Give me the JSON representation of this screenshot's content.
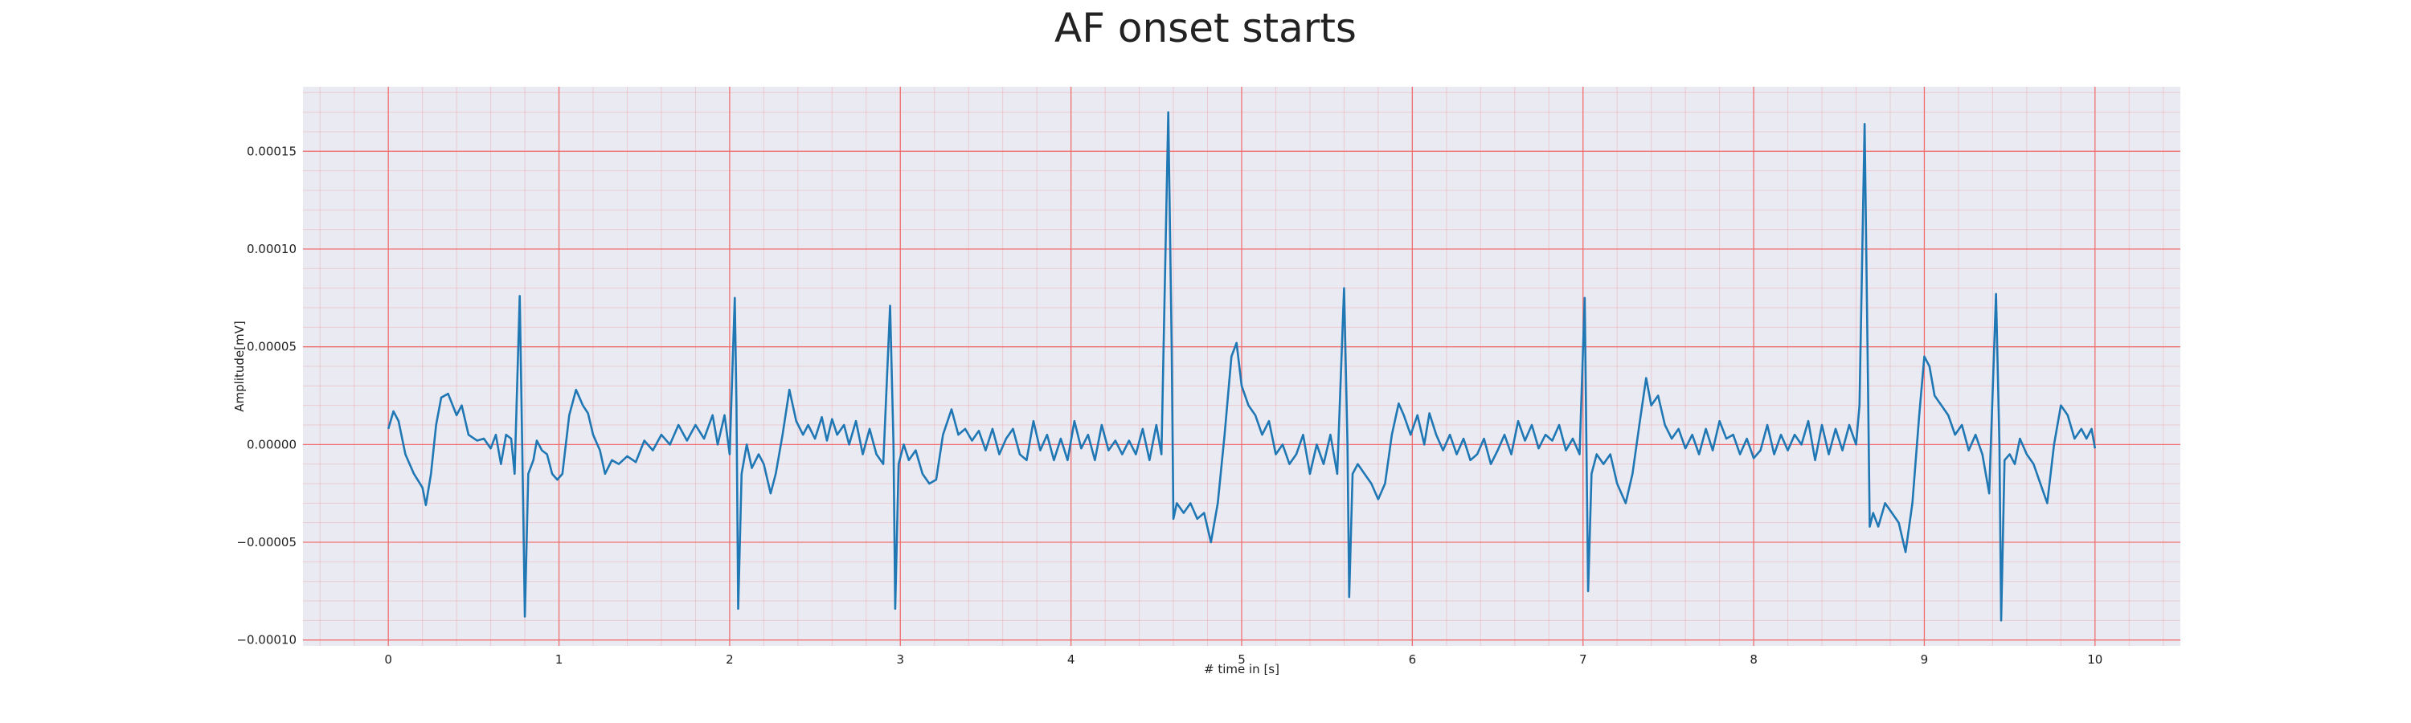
{
  "chart_data": {
    "type": "line",
    "title": "AF onset starts",
    "xlabel": "# time in [s]",
    "ylabel": "Amplitude[mV]",
    "xlim": [
      -0.5,
      10.5
    ],
    "ylim": [
      -0.000103,
      0.000183
    ],
    "xticks": [
      0,
      1,
      2,
      3,
      4,
      5,
      6,
      7,
      8,
      9,
      10
    ],
    "yticks": [
      {
        "value": -0.0001,
        "label": "−0.00010"
      },
      {
        "value": -5e-05,
        "label": "−0.00005"
      },
      {
        "value": 0,
        "label": "0.00000"
      },
      {
        "value": 5e-05,
        "label": "0.00005"
      },
      {
        "value": 0.0001,
        "label": "0.00010"
      },
      {
        "value": 0.00015,
        "label": "0.00015"
      }
    ],
    "grid": true,
    "grid_color": "#f07070",
    "background": "#eaeaf2",
    "series": [
      {
        "color": "#1f77b4",
        "x": [
          0,
          0.03,
          0.06,
          0.1,
          0.15,
          0.2,
          0.22,
          0.25,
          0.28,
          0.31,
          0.35,
          0.4,
          0.43,
          0.47,
          0.52,
          0.56,
          0.6,
          0.63,
          0.66,
          0.69,
          0.72,
          0.74,
          0.77,
          0.79,
          0.8,
          0.82,
          0.85,
          0.87,
          0.9,
          0.93,
          0.96,
          0.99,
          1.02,
          1.06,
          1.1,
          1.14,
          1.17,
          1.2,
          1.24,
          1.27,
          1.31,
          1.35,
          1.4,
          1.45,
          1.5,
          1.55,
          1.6,
          1.65,
          1.7,
          1.75,
          1.8,
          1.85,
          1.9,
          1.93,
          1.97,
          2.0,
          2.03,
          2.04,
          2.05,
          2.07,
          2.1,
          2.13,
          2.17,
          2.2,
          2.24,
          2.27,
          2.31,
          2.35,
          2.39,
          2.43,
          2.46,
          2.5,
          2.54,
          2.57,
          2.6,
          2.63,
          2.67,
          2.7,
          2.74,
          2.78,
          2.82,
          2.86,
          2.9,
          2.94,
          2.96,
          2.97,
          2.99,
          3.02,
          3.05,
          3.09,
          3.13,
          3.17,
          3.21,
          3.25,
          3.3,
          3.34,
          3.38,
          3.42,
          3.46,
          3.5,
          3.54,
          3.58,
          3.62,
          3.66,
          3.7,
          3.74,
          3.78,
          3.82,
          3.86,
          3.9,
          3.94,
          3.98,
          4.02,
          4.06,
          4.1,
          4.14,
          4.18,
          4.22,
          4.26,
          4.3,
          4.34,
          4.38,
          4.42,
          4.46,
          4.5,
          4.53,
          4.57,
          4.59,
          4.6,
          4.62,
          4.66,
          4.7,
          4.74,
          4.78,
          4.82,
          4.86,
          4.9,
          4.94,
          4.97,
          5.0,
          5.04,
          5.08,
          5.12,
          5.16,
          5.2,
          5.24,
          5.28,
          5.32,
          5.36,
          5.4,
          5.44,
          5.48,
          5.52,
          5.56,
          5.6,
          5.62,
          5.63,
          5.65,
          5.68,
          5.72,
          5.76,
          5.8,
          5.84,
          5.88,
          5.92,
          5.95,
          5.99,
          6.03,
          6.07,
          6.1,
          6.14,
          6.18,
          6.22,
          6.26,
          6.3,
          6.34,
          6.38,
          6.42,
          6.46,
          6.5,
          6.54,
          6.58,
          6.62,
          6.66,
          6.7,
          6.74,
          6.78,
          6.82,
          6.86,
          6.9,
          6.94,
          6.98,
          7.01,
          7.02,
          7.03,
          7.05,
          7.08,
          7.12,
          7.16,
          7.2,
          7.25,
          7.29,
          7.33,
          7.37,
          7.4,
          7.44,
          7.48,
          7.52,
          7.56,
          7.6,
          7.64,
          7.68,
          7.72,
          7.76,
          7.8,
          7.84,
          7.88,
          7.92,
          7.96,
          8.0,
          8.04,
          8.08,
          8.12,
          8.16,
          8.2,
          8.24,
          8.28,
          8.32,
          8.36,
          8.4,
          8.44,
          8.48,
          8.52,
          8.56,
          8.6,
          8.62,
          8.65,
          8.67,
          8.68,
          8.7,
          8.73,
          8.77,
          8.81,
          8.85,
          8.89,
          8.93,
          8.97,
          9.0,
          9.03,
          9.06,
          9.1,
          9.14,
          9.18,
          9.22,
          9.26,
          9.3,
          9.34,
          9.38,
          9.42,
          9.44,
          9.45,
          9.47,
          9.5,
          9.53,
          9.56,
          9.6,
          9.64,
          9.68,
          9.72,
          9.76,
          9.8,
          9.84,
          9.88,
          9.92,
          9.95,
          9.98,
          10.0
        ],
        "values": [
          8e-06,
          1.7e-05,
          1.2e-05,
          -5e-06,
          -1.5e-05,
          -2.2e-05,
          -3.1e-05,
          -1.5e-05,
          1e-05,
          2.4e-05,
          2.6e-05,
          1.5e-05,
          2e-05,
          5e-06,
          2e-06,
          3e-06,
          -2e-06,
          5e-06,
          -1e-05,
          5e-06,
          3e-06,
          -1.5e-05,
          7.6e-05,
          -3e-05,
          -8.8e-05,
          -1.5e-05,
          -8e-06,
          2e-06,
          -3e-06,
          -5e-06,
          -1.5e-05,
          -1.8e-05,
          -1.5e-05,
          1.5e-05,
          2.8e-05,
          2e-05,
          1.6e-05,
          5e-06,
          -3e-06,
          -1.5e-05,
          -8e-06,
          -1e-05,
          -6e-06,
          -9e-06,
          2e-06,
          -3e-06,
          5e-06,
          0,
          1e-05,
          2e-06,
          1e-05,
          3e-06,
          1.5e-05,
          0,
          1.5e-05,
          -5e-06,
          7.5e-05,
          2e-05,
          -8.4e-05,
          -1.5e-05,
          0,
          -1.2e-05,
          -5e-06,
          -1e-05,
          -2.5e-05,
          -1.5e-05,
          5e-06,
          2.8e-05,
          1.2e-05,
          5e-06,
          1e-05,
          3e-06,
          1.4e-05,
          2e-06,
          1.3e-05,
          5e-06,
          1e-05,
          0,
          1.2e-05,
          -5e-06,
          8e-06,
          -5e-06,
          -1e-05,
          7.1e-05,
          0,
          -8.4e-05,
          -1e-05,
          0,
          -8e-06,
          -3e-06,
          -1.5e-05,
          -2e-05,
          -1.8e-05,
          5e-06,
          1.8e-05,
          5e-06,
          8e-06,
          2e-06,
          7e-06,
          -3e-06,
          8e-06,
          -5e-06,
          3e-06,
          8e-06,
          -5e-06,
          -8e-06,
          1.2e-05,
          -3e-06,
          5e-06,
          -8e-06,
          3e-06,
          -8e-06,
          1.2e-05,
          -2e-06,
          5e-06,
          -8e-06,
          1e-05,
          -3e-06,
          2e-06,
          -5e-06,
          2e-06,
          -5e-06,
          8e-06,
          -8e-06,
          1e-05,
          -5e-06,
          0.00017,
          5e-05,
          -3.8e-05,
          -3e-05,
          -3.5e-05,
          -3e-05,
          -3.8e-05,
          -3.5e-05,
          -5e-05,
          -3e-05,
          5e-06,
          4.5e-05,
          5.2e-05,
          3e-05,
          2e-05,
          1.5e-05,
          5e-06,
          1.2e-05,
          -5e-06,
          0,
          -1e-05,
          -5e-06,
          5e-06,
          -1.5e-05,
          0,
          -1e-05,
          5e-06,
          -1.5e-05,
          8e-05,
          0,
          -7.8e-05,
          -1.5e-05,
          -1e-05,
          -1.5e-05,
          -2e-05,
          -2.8e-05,
          -2e-05,
          5e-06,
          2.1e-05,
          1.5e-05,
          5e-06,
          1.5e-05,
          0,
          1.6e-05,
          5e-06,
          -3e-06,
          5e-06,
          -5e-06,
          3e-06,
          -8e-06,
          -5e-06,
          3e-06,
          -1e-05,
          -3e-06,
          5e-06,
          -5e-06,
          1.2e-05,
          2e-06,
          1e-05,
          -2e-06,
          5e-06,
          2e-06,
          1e-05,
          -3e-06,
          3e-06,
          -5e-06,
          7.5e-05,
          0,
          -7.5e-05,
          -1.5e-05,
          -5e-06,
          -1e-05,
          -5e-06,
          -2e-05,
          -3e-05,
          -1.5e-05,
          1e-05,
          3.4e-05,
          2e-05,
          2.5e-05,
          1e-05,
          3e-06,
          8e-06,
          -2e-06,
          5e-06,
          -5e-06,
          8e-06,
          -3e-06,
          1.2e-05,
          3e-06,
          5e-06,
          -5e-06,
          3e-06,
          -7e-06,
          -3e-06,
          1e-05,
          -5e-06,
          5e-06,
          -3e-06,
          5e-06,
          0,
          1.2e-05,
          -8e-06,
          1e-05,
          -5e-06,
          8e-06,
          -3e-06,
          1e-05,
          0,
          2e-05,
          0.000164,
          3e-05,
          -4.2e-05,
          -3.5e-05,
          -4.2e-05,
          -3e-05,
          -3.5e-05,
          -4e-05,
          -5.5e-05,
          -3e-05,
          1.5e-05,
          4.5e-05,
          4e-05,
          2.5e-05,
          2e-05,
          1.5e-05,
          5e-06,
          1e-05,
          -3e-06,
          5e-06,
          -5e-06,
          -2.5e-05,
          7.7e-05,
          0,
          -9e-05,
          -8e-06,
          -5e-06,
          -1e-05,
          3e-06,
          -5e-06,
          -1e-05,
          -2e-05,
          -3e-05,
          0,
          2e-05,
          1.5e-05,
          3e-06,
          8e-06,
          3e-06,
          8e-06,
          -2e-06
        ]
      }
    ]
  }
}
